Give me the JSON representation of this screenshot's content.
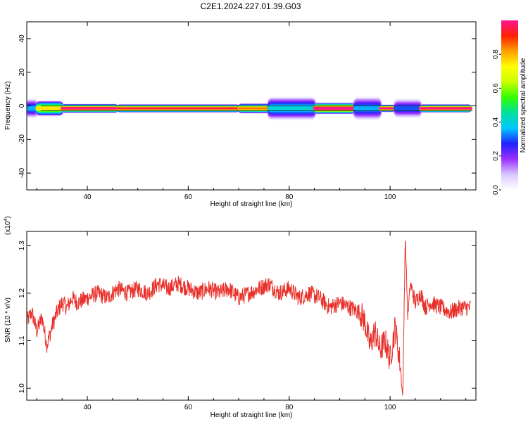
{
  "title": "C2E1.2024.227.01.39.G03",
  "chart_data": [
    {
      "type": "heatmap",
      "xlabel": "Height of straight line (km)",
      "ylabel": "Frequency (Hz)",
      "xlim": [
        28,
        117
      ],
      "ylim": [
        -50,
        50
      ],
      "x_ticks": [
        40,
        60,
        80,
        100
      ],
      "y_ticks": [
        40,
        20,
        0,
        -20,
        -40
      ],
      "colorbar": {
        "label": "Normalized spectral amplitude",
        "range": [
          0,
          1
        ],
        "ticks": [
          "0.0",
          "0.2",
          "0.4",
          "0.6",
          "0.8"
        ],
        "colors": [
          "#ffffff",
          "#d8c8ff",
          "#9b30ff",
          "#2020ff",
          "#00c8ff",
          "#00e0a0",
          "#30ff00",
          "#c8ff00",
          "#ffff00",
          "#ffa000",
          "#ff2000",
          "#ff1493"
        ]
      },
      "band": {
        "center_freq_hz": -1.5,
        "segments": [
          {
            "x": [
              28,
              30
            ],
            "peak": 0.35,
            "half_width_hz": 2.5
          },
          {
            "x": [
              30,
              35
            ],
            "peak": 0.75,
            "half_width_hz": 2
          },
          {
            "x": [
              35,
              46
            ],
            "peak": 1.0,
            "half_width_hz": 1.2
          },
          {
            "x": [
              46,
              70
            ],
            "peak": 0.95,
            "half_width_hz": 1.1
          },
          {
            "x": [
              70,
              76
            ],
            "peak": 0.85,
            "half_width_hz": 1.3
          },
          {
            "x": [
              76,
              85
            ],
            "peak": 0.4,
            "half_width_hz": 3
          },
          {
            "x": [
              85,
              93
            ],
            "peak": 1.0,
            "half_width_hz": 1.5
          },
          {
            "x": [
              93,
              98
            ],
            "peak": 0.35,
            "half_width_hz": 3
          },
          {
            "x": [
              98,
              101
            ],
            "peak": 1.0,
            "half_width_hz": 1
          },
          {
            "x": [
              101,
              106
            ],
            "peak": 0.3,
            "half_width_hz": 2.5
          },
          {
            "x": [
              106,
              116
            ],
            "peak": 1.0,
            "half_width_hz": 1.1
          }
        ]
      }
    },
    {
      "type": "line",
      "xlabel": "Height of straight line (km)",
      "ylabel": "SNR (10 * v/v)",
      "y_multiplier": "(x10",
      "y_multiplier_exp": "4",
      "y_multiplier_close": ")",
      "xlim": [
        28,
        117
      ],
      "ylim": [
        0.975,
        1.33
      ],
      "x_ticks": [
        40,
        60,
        80,
        100
      ],
      "y_ticks": [
        1.0,
        1.1,
        1.2,
        1.3
      ],
      "series": [
        {
          "color": "#e8302a",
          "x": [
            28,
            29,
            30,
            31,
            32,
            33,
            34,
            35,
            36,
            37,
            38,
            40,
            42,
            44,
            46,
            48,
            50,
            52,
            54,
            56,
            58,
            60,
            62,
            64,
            66,
            68,
            70,
            72,
            74,
            76,
            77,
            78,
            80,
            82,
            84,
            86,
            88,
            90,
            92,
            94,
            95,
            96,
            97,
            98,
            99,
            100,
            101,
            102,
            102.5,
            103,
            103.5,
            104,
            105,
            106,
            107,
            108,
            110,
            112,
            114,
            116
          ],
          "y": [
            1.14,
            1.16,
            1.12,
            1.15,
            1.09,
            1.13,
            1.16,
            1.18,
            1.17,
            1.19,
            1.18,
            1.19,
            1.2,
            1.19,
            1.21,
            1.2,
            1.21,
            1.2,
            1.22,
            1.21,
            1.22,
            1.21,
            1.2,
            1.21,
            1.2,
            1.21,
            1.19,
            1.2,
            1.21,
            1.22,
            1.21,
            1.2,
            1.21,
            1.19,
            1.2,
            1.19,
            1.17,
            1.18,
            1.17,
            1.16,
            1.14,
            1.09,
            1.12,
            1.08,
            1.1,
            1.06,
            1.13,
            1.05,
            0.98,
            1.32,
            1.15,
            1.22,
            1.18,
            1.2,
            1.17,
            1.18,
            1.17,
            1.16,
            1.17,
            1.17
          ]
        }
      ]
    }
  ]
}
